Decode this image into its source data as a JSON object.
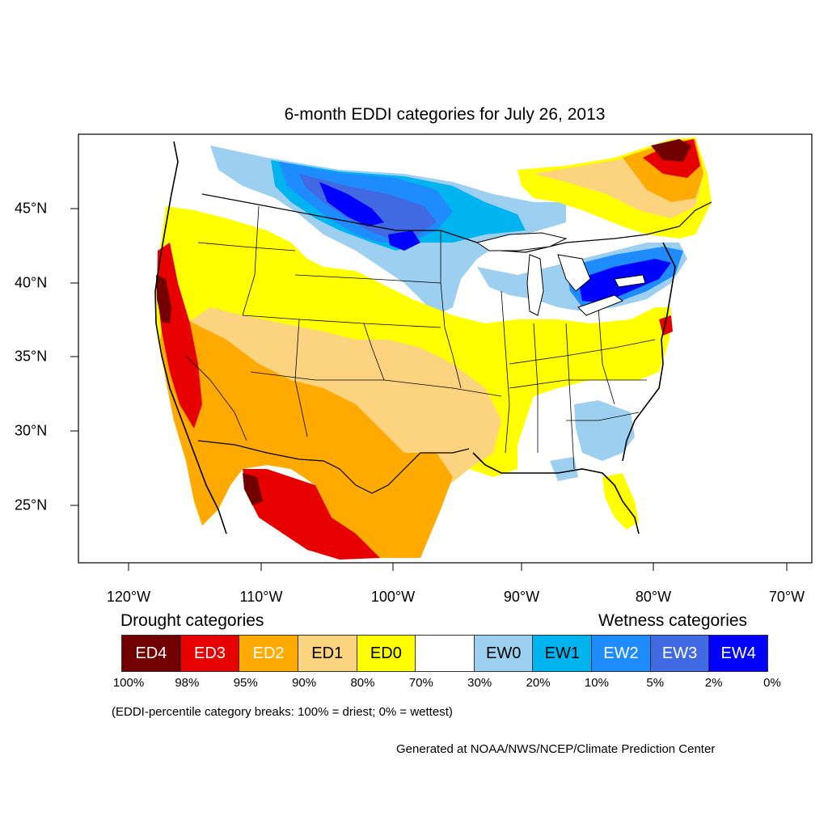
{
  "title": "6-month EDDI categories for July 26, 2013",
  "axes": {
    "lon_ticks": [
      "120°W",
      "110°W",
      "100°W",
      "90°W",
      "80°W",
      "70°W"
    ],
    "lat_ticks": [
      "45°N",
      "40°N",
      "35°N",
      "30°N",
      "25°N"
    ]
  },
  "legend": {
    "drought_heading": "Drought categories",
    "wetness_heading": "Wetness categories",
    "categories": [
      {
        "label": "ED4",
        "color": "#730000",
        "text_color": "#ffffff"
      },
      {
        "label": "ED3",
        "color": "#e60000",
        "text_color": "#ffffff"
      },
      {
        "label": "ED2",
        "color": "#ffaa00",
        "text_color": "#ffffff"
      },
      {
        "label": "ED1",
        "color": "#fcd37f",
        "text_color": "#000000"
      },
      {
        "label": "ED0",
        "color": "#ffff00",
        "text_color": "#000000"
      },
      {
        "label": "",
        "color": "#ffffff",
        "text_color": "#000000"
      },
      {
        "label": "EW0",
        "color": "#9ccff0",
        "text_color": "#000000"
      },
      {
        "label": "EW1",
        "color": "#00b4f0",
        "text_color": "#000000"
      },
      {
        "label": "EW2",
        "color": "#1e8cff",
        "text_color": "#ffffff"
      },
      {
        "label": "EW3",
        "color": "#4169e1",
        "text_color": "#ffffff"
      },
      {
        "label": "EW4",
        "color": "#0000ff",
        "text_color": "#ffffff"
      }
    ],
    "breaks": [
      "100%",
      "98%",
      "95%",
      "90%",
      "80%",
      "70%",
      "30%",
      "20%",
      "10%",
      "5%",
      "2%",
      "0%"
    ],
    "note": "(EDDI-percentile category breaks: 100% = driest; 0% = wettest)"
  },
  "credit": "Generated at NOAA/NWS/NCEP/Climate Prediction Center"
}
